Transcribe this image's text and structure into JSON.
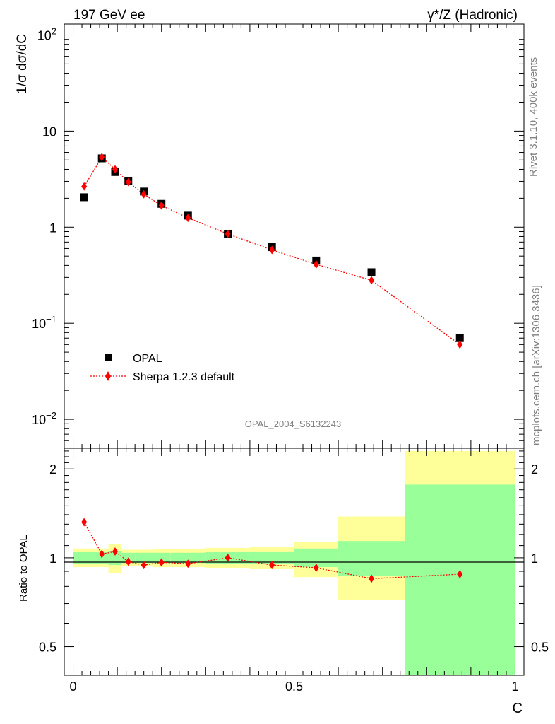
{
  "header": {
    "left": "197 GeV ee",
    "right": "γ*/Z (Hadronic)"
  },
  "side_text": {
    "rivet": "Rivet 3.1.10,  400k events",
    "mcplots": "mcplots.cern.ch [arXiv:1306.3436]"
  },
  "watermark": "OPAL_2004_S6132243",
  "colors": {
    "data": "#000000",
    "mc": "#ff0000",
    "band_inner": "#99ff99",
    "band_outer": "#ffff99"
  },
  "chart_data": [
    {
      "type": "scatter",
      "panel": "main",
      "ylabel": "1/σ dσ/dC",
      "yscale": "log",
      "ylim": [
        0.005,
        130
      ],
      "xlim": [
        -0.02,
        1.02
      ],
      "yticks": [
        {
          "v": 0.01,
          "base": "10",
          "exp": "−2"
        },
        {
          "v": 0.1,
          "base": "10",
          "exp": "−1"
        },
        {
          "v": 1,
          "base": "1",
          "exp": ""
        },
        {
          "v": 10,
          "base": "10",
          "exp": ""
        },
        {
          "v": 100,
          "base": "10",
          "exp": "2"
        }
      ],
      "legend": {
        "position": "bottom-left",
        "entries": [
          "OPAL",
          "Sherpa 1.2.3 default"
        ]
      },
      "series": [
        {
          "name": "OPAL",
          "marker": "square",
          "x": [
            0.025,
            0.065,
            0.095,
            0.125,
            0.16,
            0.2,
            0.26,
            0.35,
            0.45,
            0.55,
            0.675,
            0.875
          ],
          "y": [
            2.05,
            5.2,
            3.75,
            3.05,
            2.35,
            1.75,
            1.32,
            0.85,
            0.62,
            0.45,
            0.34,
            0.07
          ]
        },
        {
          "name": "Sherpa 1.2.3 default",
          "marker": "diamond",
          "line": "dotted",
          "x": [
            0.025,
            0.065,
            0.095,
            0.125,
            0.16,
            0.2,
            0.26,
            0.35,
            0.45,
            0.55,
            0.675,
            0.875
          ],
          "y": [
            2.65,
            5.35,
            4.0,
            2.95,
            2.2,
            1.68,
            1.25,
            0.85,
            0.58,
            0.41,
            0.28,
            0.06
          ]
        }
      ]
    },
    {
      "type": "scatter",
      "panel": "ratio",
      "ylabel": "Ratio to OPAL",
      "xlabel": "C",
      "yscale": "log",
      "ylim": [
        0.4,
        2.35
      ],
      "xlim": [
        -0.02,
        1.02
      ],
      "yticks": [
        0.5,
        1,
        2
      ],
      "ytick_labels": [
        "0.5",
        "1",
        "2"
      ],
      "xticks": [
        0,
        0.5,
        1
      ],
      "xtick_labels": [
        "0",
        "0.5",
        "1"
      ],
      "reference_line": 1,
      "bands": [
        {
          "x0": 0.0,
          "x1": 0.08,
          "inner": [
            0.955,
            1.045
          ],
          "outer": [
            0.93,
            1.075
          ]
        },
        {
          "x0": 0.08,
          "x1": 0.11,
          "inner": [
            0.945,
            1.055
          ],
          "outer": [
            0.885,
            1.115
          ]
        },
        {
          "x0": 0.11,
          "x1": 0.14,
          "inner": [
            0.96,
            1.04
          ],
          "outer": [
            0.935,
            1.065
          ]
        },
        {
          "x0": 0.14,
          "x1": 0.18,
          "inner": [
            0.96,
            1.04
          ],
          "outer": [
            0.935,
            1.065
          ]
        },
        {
          "x0": 0.18,
          "x1": 0.22,
          "inner": [
            0.96,
            1.04
          ],
          "outer": [
            0.93,
            1.07
          ]
        },
        {
          "x0": 0.22,
          "x1": 0.3,
          "inner": [
            0.96,
            1.04
          ],
          "outer": [
            0.93,
            1.07
          ]
        },
        {
          "x0": 0.3,
          "x1": 0.4,
          "inner": [
            0.955,
            1.045
          ],
          "outer": [
            0.92,
            1.08
          ]
        },
        {
          "x0": 0.4,
          "x1": 0.5,
          "inner": [
            0.955,
            1.045
          ],
          "outer": [
            0.915,
            1.09
          ]
        },
        {
          "x0": 0.5,
          "x1": 0.6,
          "inner": [
            0.93,
            1.075
          ],
          "outer": [
            0.86,
            1.135
          ]
        },
        {
          "x0": 0.6,
          "x1": 0.75,
          "inner": [
            0.87,
            1.14
          ],
          "outer": [
            0.72,
            1.38
          ]
        },
        {
          "x0": 0.75,
          "x1": 1.0,
          "inner": [
            0.4,
            1.77
          ],
          "outer": [
            0.4,
            2.3
          ]
        }
      ],
      "series": [
        {
          "name": "Sherpa 1.2.3 default",
          "marker": "diamond",
          "line": "dotted",
          "x": [
            0.025,
            0.065,
            0.095,
            0.125,
            0.16,
            0.2,
            0.26,
            0.35,
            0.45,
            0.55,
            0.675,
            0.875
          ],
          "y": [
            1.32,
            1.03,
            1.05,
            0.97,
            0.945,
            0.965,
            0.955,
            1.0,
            0.945,
            0.925,
            0.85,
            0.88
          ]
        }
      ]
    }
  ]
}
